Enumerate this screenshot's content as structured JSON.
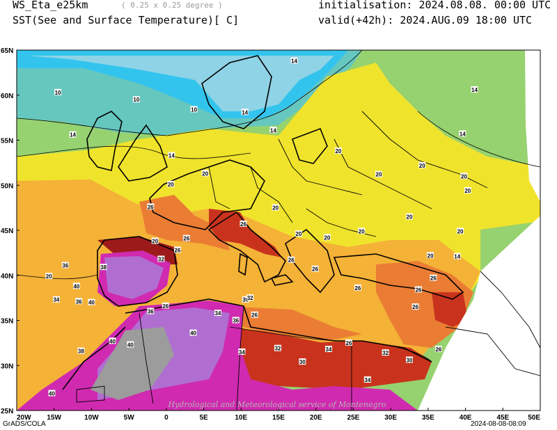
{
  "header": {
    "model": "WS_Eta_e25km",
    "resolution": "( 0.25 x 0.25 degree )",
    "variable": "SST(See and Surface Temperature)[ C]",
    "initialisation": "initialisation: 2024.08.08. 00:00 UTC",
    "valid": "valid(+42h): 2024.AUG.09 18:00 UTC"
  },
  "axes": {
    "lon_labels": [
      "20W",
      "15W",
      "10W",
      "5W",
      "0",
      "5E",
      "10E",
      "15E",
      "20E",
      "25E",
      "30E",
      "35E",
      "40E",
      "45E",
      "50E"
    ],
    "lat_labels": [
      "65N",
      "60N",
      "55N",
      "50N",
      "45N",
      "40N",
      "35N",
      "30N",
      "25N"
    ]
  },
  "contour_labels": [
    {
      "text": "10",
      "lon": -14.5,
      "lat": 60.3
    },
    {
      "text": "10",
      "lon": -4,
      "lat": 59.5
    },
    {
      "text": "10",
      "lon": 3.7,
      "lat": 58.4
    },
    {
      "text": "14",
      "lon": 10.5,
      "lat": 58.1
    },
    {
      "text": "14",
      "lon": -12.5,
      "lat": 55.6
    },
    {
      "text": "14",
      "lon": 0.7,
      "lat": 53.3
    },
    {
      "text": "14",
      "lon": 17.1,
      "lat": 63.8
    },
    {
      "text": "14",
      "lon": 14.3,
      "lat": 56.1
    },
    {
      "text": "14",
      "lon": 41.2,
      "lat": 60.6
    },
    {
      "text": "14",
      "lon": 39.6,
      "lat": 55.7
    },
    {
      "text": "14",
      "lon": 38.9,
      "lat": 42.1
    },
    {
      "text": "20",
      "lon": 23,
      "lat": 53.8
    },
    {
      "text": "20",
      "lon": 34.2,
      "lat": 52.2
    },
    {
      "text": "20",
      "lon": 28.4,
      "lat": 51.2
    },
    {
      "text": "20",
      "lon": 39.8,
      "lat": 51
    },
    {
      "text": "20",
      "lon": 40.3,
      "lat": 49.4
    },
    {
      "text": "20",
      "lon": 5.2,
      "lat": 51.3
    },
    {
      "text": "20",
      "lon": 0.6,
      "lat": 50.1
    },
    {
      "text": "20",
      "lon": 14.6,
      "lat": 47.5
    },
    {
      "text": "20",
      "lon": 32.5,
      "lat": 46.5
    },
    {
      "text": "20",
      "lon": 39.3,
      "lat": 44.9
    },
    {
      "text": "20",
      "lon": 35.3,
      "lat": 42.2
    },
    {
      "text": "20",
      "lon": 17.7,
      "lat": 44.6
    },
    {
      "text": "20",
      "lon": 21.5,
      "lat": 44.2
    },
    {
      "text": "20",
      "lon": 26.1,
      "lat": 44.9
    },
    {
      "text": "20",
      "lon": -1.5,
      "lat": 43.8
    },
    {
      "text": "20",
      "lon": -15.7,
      "lat": 39.9
    },
    {
      "text": "26",
      "lon": -2.1,
      "lat": 47.6
    },
    {
      "text": "26",
      "lon": 2.7,
      "lat": 44.1
    },
    {
      "text": "26",
      "lon": 10.3,
      "lat": 45.7
    },
    {
      "text": "26",
      "lon": 1.5,
      "lat": 42.8
    },
    {
      "text": "26",
      "lon": 16.7,
      "lat": 41.7
    },
    {
      "text": "26",
      "lon": 19.9,
      "lat": 40.7
    },
    {
      "text": "26",
      "lon": 25.6,
      "lat": 38.6
    },
    {
      "text": "26",
      "lon": 35.7,
      "lat": 39.7
    },
    {
      "text": "26",
      "lon": 33.7,
      "lat": 38.4
    },
    {
      "text": "26",
      "lon": 33.3,
      "lat": 36.5
    },
    {
      "text": "26",
      "lon": -0.1,
      "lat": 36.6
    },
    {
      "text": "26",
      "lon": 11.8,
      "lat": 35.6
    },
    {
      "text": "26",
      "lon": 24.4,
      "lat": 32.5
    },
    {
      "text": "26",
      "lon": 36.4,
      "lat": 31.8
    },
    {
      "text": "30",
      "lon": 10.6,
      "lat": 37.3
    },
    {
      "text": "30",
      "lon": 18.2,
      "lat": 30.4
    },
    {
      "text": "30",
      "lon": 32.5,
      "lat": 30.6
    },
    {
      "text": "32",
      "lon": -0.7,
      "lat": 41.8
    },
    {
      "text": "32",
      "lon": 11.2,
      "lat": 37.5
    },
    {
      "text": "32",
      "lon": 14.9,
      "lat": 31.9
    },
    {
      "text": "32",
      "lon": 29.3,
      "lat": 31.4
    },
    {
      "text": "34",
      "lon": -14.7,
      "lat": 37.3
    },
    {
      "text": "34",
      "lon": 6.9,
      "lat": 35.8
    },
    {
      "text": "34",
      "lon": 10.1,
      "lat": 31.5
    },
    {
      "text": "34",
      "lon": 21.7,
      "lat": 31.8
    },
    {
      "text": "34",
      "lon": 26.9,
      "lat": 28.4
    },
    {
      "text": "36",
      "lon": -11.7,
      "lat": 37.1
    },
    {
      "text": "36",
      "lon": -13.5,
      "lat": 41.1
    },
    {
      "text": "36",
      "lon": 9.3,
      "lat": 35
    },
    {
      "text": "36",
      "lon": -2.1,
      "lat": 36
    },
    {
      "text": "38",
      "lon": -8.4,
      "lat": 40.9
    },
    {
      "text": "38",
      "lon": -11.4,
      "lat": 31.6
    },
    {
      "text": "40",
      "lon": -12,
      "lat": 38.8
    },
    {
      "text": "40",
      "lon": -10,
      "lat": 37
    },
    {
      "text": "40",
      "lon": -7.2,
      "lat": 32.7
    },
    {
      "text": "40",
      "lon": -4.8,
      "lat": 32.3
    },
    {
      "text": "40",
      "lon": 3.6,
      "lat": 33.6
    },
    {
      "text": "40",
      "lon": -15.3,
      "lat": 26.9
    }
  ],
  "footer": {
    "left": "GrADS/COLA",
    "right": "2024-08-08-08:09",
    "credit": "Hydrological and Meteorological service of Montenegro"
  },
  "colors": {
    "cold_blue": "#33c4ee",
    "teal": "#66c7bf",
    "green": "#96d26f",
    "yellow": "#f0e32c",
    "orange": "#f4b237",
    "dark_orange": "#ea7d33",
    "red": "#c9331d",
    "dark_red": "#9c1a1a",
    "magenta": "#d02ab0",
    "purple": "#b06ed1",
    "grey": "#9c9c9c"
  }
}
